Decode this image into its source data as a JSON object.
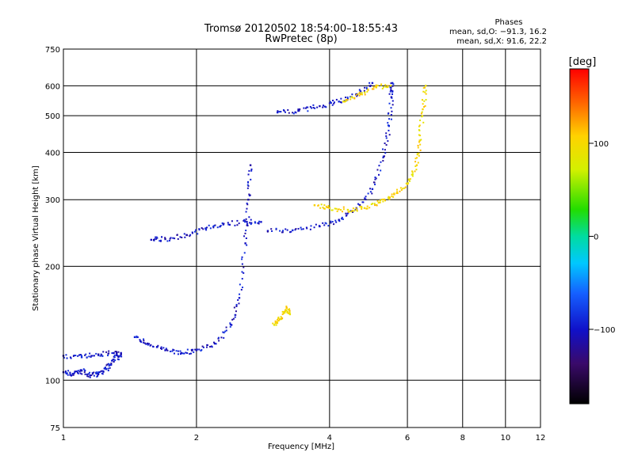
{
  "chart_data": {
    "type": "scatter",
    "title": "Tromsø 20120502 18:54:00–18:55:43",
    "subtitle": "RwPretec (8p)",
    "xlabel": "Frequency [MHz]",
    "ylabel": "Stationary phase Virtual Height [km]",
    "x_scale": "log",
    "y_scale": "log",
    "xlim": [
      1,
      12
    ],
    "ylim": [
      75,
      750
    ],
    "x_ticks": [
      1,
      2,
      4,
      6,
      8,
      10,
      12
    ],
    "x_tick_labels": [
      "1",
      "2",
      "4",
      "6",
      "8",
      "10",
      "12"
    ],
    "y_ticks": [
      75,
      100,
      200,
      300,
      400,
      500,
      600,
      750
    ],
    "y_tick_labels": [
      "75",
      "100",
      "200",
      "300",
      "400",
      "500",
      "600",
      "750"
    ],
    "grid": true,
    "phases_header": "Phases",
    "phases_lines": [
      "mean, sd,O: −91.3, 16.2",
      "mean, sd,X:  91.6, 22.2"
    ],
    "colorbar": {
      "label": "[deg]",
      "range": [
        -180,
        180
      ],
      "ticks": [
        100,
        0,
        -100
      ],
      "tick_labels": [
        "100",
        "0",
        "−100"
      ]
    },
    "traces": [
      {
        "name": "O-low-E",
        "color_deg": -100,
        "points": [
          [
            1.0,
            105
          ],
          [
            1.05,
            104
          ],
          [
            1.1,
            106
          ],
          [
            1.15,
            103
          ],
          [
            1.2,
            104
          ],
          [
            1.25,
            107
          ],
          [
            1.3,
            112
          ],
          [
            1.35,
            118
          ]
        ]
      },
      {
        "name": "O-E-upper",
        "color_deg": -100,
        "points": [
          [
            1.0,
            116
          ],
          [
            1.1,
            115
          ],
          [
            1.2,
            117
          ],
          [
            1.3,
            118
          ],
          [
            1.35,
            117
          ]
        ]
      },
      {
        "name": "O-E-main",
        "color_deg": -100,
        "points": [
          [
            1.45,
            130
          ],
          [
            1.55,
            125
          ],
          [
            1.7,
            120
          ],
          [
            1.85,
            118
          ],
          [
            2.0,
            120
          ],
          [
            2.2,
            125
          ],
          [
            2.4,
            140
          ],
          [
            2.5,
            165
          ],
          [
            2.58,
            230
          ],
          [
            2.62,
            300
          ],
          [
            2.65,
            370
          ]
        ]
      },
      {
        "name": "O-F1",
        "color_deg": -100,
        "points": [
          [
            1.58,
            235
          ],
          [
            1.7,
            236
          ],
          [
            1.9,
            242
          ],
          [
            2.1,
            252
          ],
          [
            2.3,
            258
          ],
          [
            2.6,
            262
          ],
          [
            2.8,
            262
          ]
        ]
      },
      {
        "name": "O-F2",
        "color_deg": -100,
        "points": [
          [
            2.9,
            248
          ],
          [
            3.3,
            249
          ],
          [
            3.8,
            255
          ],
          [
            4.2,
            265
          ],
          [
            4.6,
            285
          ],
          [
            5.0,
            320
          ],
          [
            5.3,
            390
          ],
          [
            5.45,
            470
          ],
          [
            5.52,
            560
          ],
          [
            5.55,
            610
          ]
        ]
      },
      {
        "name": "O-high",
        "color_deg": -100,
        "points": [
          [
            3.05,
            510
          ],
          [
            3.4,
            515
          ],
          [
            3.8,
            530
          ],
          [
            4.2,
            545
          ],
          [
            4.6,
            570
          ],
          [
            5.0,
            610
          ]
        ]
      },
      {
        "name": "X-F2",
        "color_deg": 100,
        "points": [
          [
            3.7,
            290
          ],
          [
            4.0,
            285
          ],
          [
            4.4,
            282
          ],
          [
            4.8,
            285
          ],
          [
            5.2,
            295
          ],
          [
            5.6,
            310
          ],
          [
            6.0,
            330
          ],
          [
            6.3,
            370
          ],
          [
            6.4,
            430
          ],
          [
            6.5,
            520
          ],
          [
            6.6,
            600
          ]
        ]
      },
      {
        "name": "X-high",
        "color_deg": 100,
        "points": [
          [
            4.3,
            545
          ],
          [
            4.7,
            570
          ],
          [
            5.1,
            595
          ],
          [
            5.5,
            600
          ]
        ]
      },
      {
        "name": "X-E",
        "color_deg": 100,
        "points": [
          [
            3.0,
            140
          ],
          [
            3.1,
            145
          ],
          [
            3.2,
            155
          ],
          [
            3.25,
            150
          ]
        ]
      }
    ]
  }
}
